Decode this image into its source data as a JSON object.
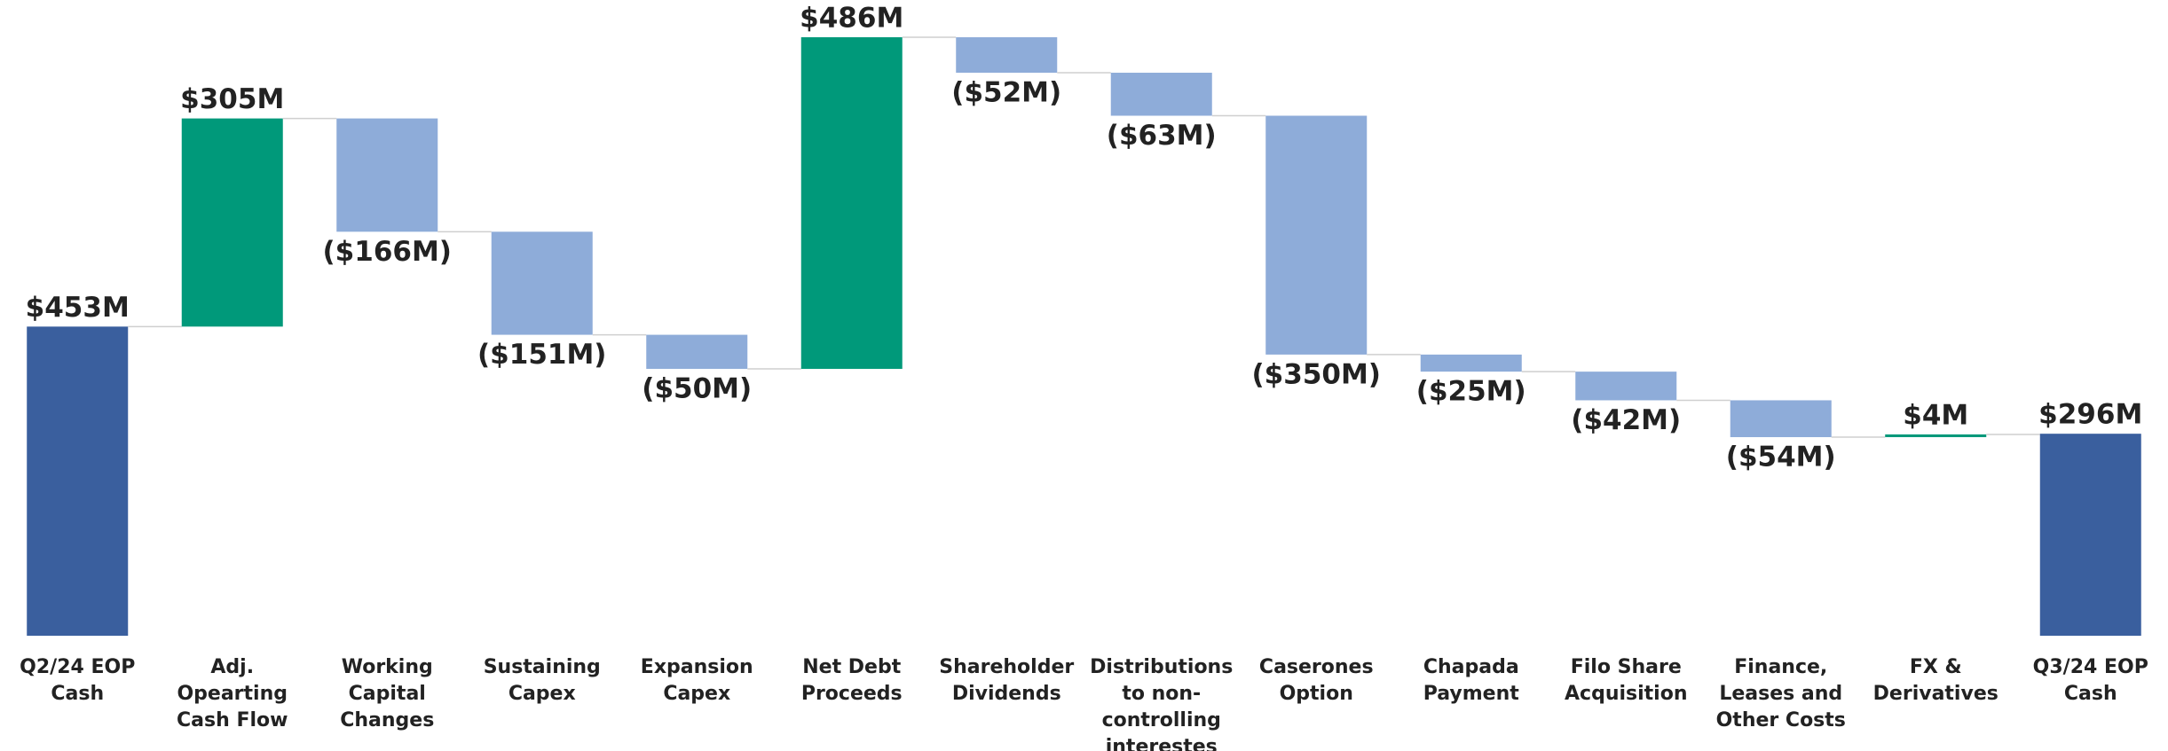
{
  "chart_data": {
    "type": "waterfall",
    "categories": [
      "Q2/24 EOP Cash",
      "Adj.\nOpearting\nCash Flow",
      "Working\nCapital\nChanges",
      "Sustaining\nCapex",
      "Expansion\nCapex",
      "Net Debt\nProceeds",
      "Shareholder\nDividends",
      "Distributions\nto non-\ncontrolling\ninterestes",
      "Caserones\nOption",
      "Chapada\nPayment",
      "Filo Share\nAcquisition",
      "Finance,\nLeases and\nOther Costs",
      "FX &\nDerivatives",
      "Q3/24 EOP Cash"
    ],
    "values": [
      453,
      305,
      -166,
      -151,
      -50,
      486,
      -52,
      -63,
      -350,
      -25,
      -42,
      -54,
      4,
      296
    ],
    "value_labels": [
      "$453M",
      "$305M",
      "($166M)",
      "($151M)",
      "($50M)",
      "$486M",
      "($52M)",
      "($63M)",
      "($350M)",
      "($25M)",
      "($42M)",
      "($54M)",
      "$4M",
      "$296M"
    ],
    "measures": [
      "total",
      "relative",
      "relative",
      "relative",
      "relative",
      "relative",
      "relative",
      "relative",
      "relative",
      "relative",
      "relative",
      "relative",
      "relative",
      "total"
    ],
    "colors": {
      "total": "#3a5f9e",
      "increase": "#00997a",
      "decrease": "#8eacd9"
    }
  }
}
